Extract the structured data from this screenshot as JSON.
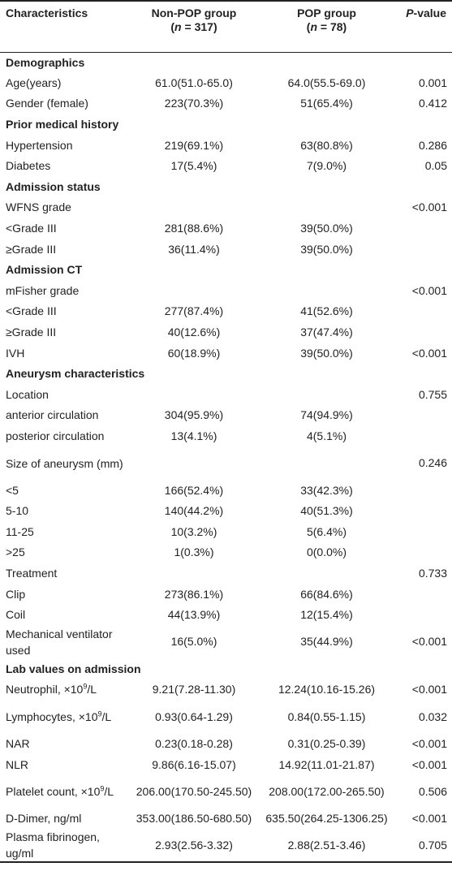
{
  "header": {
    "characteristics": "Characteristics",
    "nonpop": {
      "name": "Non-POP group",
      "n_label": "n",
      "n_value": "= 317"
    },
    "pop": {
      "name": "POP group",
      "n_label": "n",
      "n_value": "= 78"
    },
    "pvalue": {
      "italic": "P",
      "rest": "-value"
    }
  },
  "rows": [
    {
      "type": "section",
      "label": "Demographics"
    },
    {
      "type": "data",
      "label": "Age(years)",
      "nonpop": "61.0(51.0-65.0)",
      "pop": "64.0(55.5-69.0)",
      "p": "0.001"
    },
    {
      "type": "data",
      "label": "Gender (female)",
      "nonpop": "223(70.3%)",
      "pop": "51(65.4%)",
      "p": "0.412"
    },
    {
      "type": "section",
      "label": "Prior medical history"
    },
    {
      "type": "data",
      "label": "Hypertension",
      "nonpop": "219(69.1%)",
      "pop": "63(80.8%)",
      "p": "0.286"
    },
    {
      "type": "data",
      "label": "Diabetes",
      "nonpop": "17(5.4%)",
      "pop": "7(9.0%)",
      "p": "0.05"
    },
    {
      "type": "section",
      "label": "Admission status"
    },
    {
      "type": "data",
      "label": "WFNS grade",
      "nonpop": "",
      "pop": "",
      "p": "<0.001"
    },
    {
      "type": "data",
      "label": "<Grade III",
      "nonpop": "281(88.6%)",
      "pop": "39(50.0%)",
      "p": ""
    },
    {
      "type": "data",
      "label": "≥Grade III",
      "nonpop": "36(11.4%)",
      "pop": "39(50.0%)",
      "p": ""
    },
    {
      "type": "section",
      "label": "Admission CT"
    },
    {
      "type": "data",
      "label": "mFisher grade",
      "nonpop": "",
      "pop": "",
      "p": "<0.001"
    },
    {
      "type": "data",
      "label": "<Grade III",
      "nonpop": "277(87.4%)",
      "pop": "41(52.6%)",
      "p": ""
    },
    {
      "type": "data",
      "label": "≥Grade III",
      "nonpop": "40(12.6%)",
      "pop": "37(47.4%)",
      "p": ""
    },
    {
      "type": "data",
      "label": "IVH",
      "nonpop": "60(18.9%)",
      "pop": "39(50.0%)",
      "p": "<0.001"
    },
    {
      "type": "section",
      "label": "Aneurysm characteristics"
    },
    {
      "type": "data",
      "label": "Location",
      "nonpop": "",
      "pop": "",
      "p": "0.755"
    },
    {
      "type": "data",
      "label": "anterior circulation",
      "nonpop": "304(95.9%)",
      "pop": "74(94.9%)",
      "p": ""
    },
    {
      "type": "data",
      "label": "posterior circulation",
      "nonpop": "13(4.1%)",
      "pop": "4(5.1%)",
      "p": ""
    },
    {
      "type": "tall",
      "label": "Size of aneurysm (mm)",
      "nonpop": "",
      "pop": "",
      "p": "0.246"
    },
    {
      "type": "data",
      "label": "<5",
      "nonpop": "166(52.4%)",
      "pop": "33(42.3%)",
      "p": ""
    },
    {
      "type": "data",
      "label": "5-10",
      "nonpop": "140(44.2%)",
      "pop": "40(51.3%)",
      "p": ""
    },
    {
      "type": "data",
      "label": "11-25",
      "nonpop": "10(3.2%)",
      "pop": "5(6.4%)",
      "p": ""
    },
    {
      "type": "data",
      "label": ">25",
      "nonpop": "1(0.3%)",
      "pop": "0(0.0%)",
      "p": ""
    },
    {
      "type": "data",
      "label": "Treatment",
      "nonpop": "",
      "pop": "",
      "p": "0.733"
    },
    {
      "type": "data",
      "label": "Clip",
      "nonpop": "273(86.1%)",
      "pop": "66(84.6%)",
      "p": ""
    },
    {
      "type": "data",
      "label": "Coil",
      "nonpop": "44(13.9%)",
      "pop": "12(15.4%)",
      "p": ""
    },
    {
      "type": "tall",
      "label": "Mechanical ventilator used",
      "nonpop": "16(5.0%)",
      "pop": "35(44.9%)",
      "p": "<0.001"
    },
    {
      "type": "section",
      "label": "Lab values on admission"
    },
    {
      "type": "data",
      "label": "Neutrophil, ×10",
      "sup": "9",
      "suffix": "/L",
      "nonpop": "9.21(7.28-11.30)",
      "pop": "12.24(10.16-15.26)",
      "p": "<0.001"
    },
    {
      "type": "tall",
      "label": "Lymphocytes, ×10",
      "sup": "9",
      "suffix": "/L",
      "nonpop": "0.93(0.64-1.29)",
      "pop": "0.84(0.55-1.15)",
      "p": "0.032"
    },
    {
      "type": "data",
      "label": "NAR",
      "nonpop": "0.23(0.18-0.28)",
      "pop": "0.31(0.25-0.39)",
      "p": "<0.001"
    },
    {
      "type": "data",
      "label": "NLR",
      "nonpop": "9.86(6.16-15.07)",
      "pop": "14.92(11.01-21.87)",
      "p": "<0.001"
    },
    {
      "type": "tall",
      "label": "Platelet count, ×10",
      "sup": "9",
      "suffix": "/L",
      "nonpop": "206.00(170.50-245.50)",
      "pop": "208.00(172.00-265.50)",
      "p": "0.506"
    },
    {
      "type": "data",
      "label": "D-Dimer, ng/ml",
      "nonpop": "353.00(186.50-680.50)",
      "pop": "635.50(264.25-1306.25)",
      "p": "<0.001"
    },
    {
      "type": "tall",
      "label": "Plasma fibrinogen, ug/ml",
      "nonpop": "2.93(2.56-3.32)",
      "pop": "2.88(2.51-3.46)",
      "p": "0.705"
    }
  ]
}
